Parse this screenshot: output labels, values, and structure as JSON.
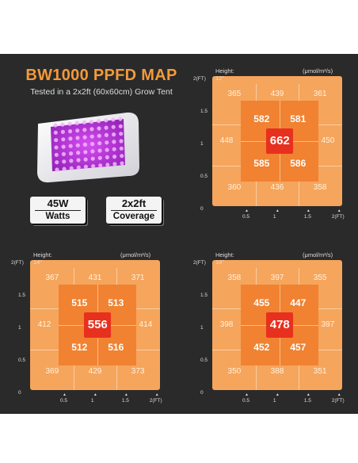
{
  "header": {
    "title": "BW1000 PPFD MAP",
    "subtitle": "Tested in a 2x2ft (60x60cm) Grow Tent"
  },
  "product": {
    "image_icon": "led-grow-light-icon"
  },
  "specs": [
    {
      "value": "45W",
      "label": "Watts"
    },
    {
      "value": "2x2ft",
      "label": "Coverage"
    }
  ],
  "axes": {
    "y_ticks": [
      "2(FT)",
      "1.5",
      "1",
      "0.5",
      "0"
    ],
    "x_ticks": [
      "0.5",
      "1",
      "1.5",
      "2(FT)"
    ]
  },
  "unit": "(μmol/m²/s)",
  "maps": [
    {
      "height": "Height: 12\"",
      "outer": [
        "365",
        "439",
        "361",
        "448",
        "450",
        "360",
        "436",
        "358"
      ],
      "inner": [
        "582",
        "581",
        "585",
        "586"
      ],
      "center": "662"
    },
    {
      "height": "Height: 14\"",
      "outer": [
        "367",
        "431",
        "371",
        "412",
        "414",
        "369",
        "429",
        "373"
      ],
      "inner": [
        "515",
        "513",
        "512",
        "516"
      ],
      "center": "556"
    },
    {
      "height": "Height: 16\"",
      "outer": [
        "358",
        "397",
        "355",
        "398",
        "397",
        "350",
        "388",
        "351"
      ],
      "inner": [
        "455",
        "447",
        "452",
        "457"
      ],
      "center": "478"
    }
  ],
  "colors": {
    "background": "#2a2a2a",
    "title": "#f39a3a",
    "outer_zone": "#f6a55c",
    "inner_zone": "#f08231",
    "center_zone": "#e8301f"
  }
}
